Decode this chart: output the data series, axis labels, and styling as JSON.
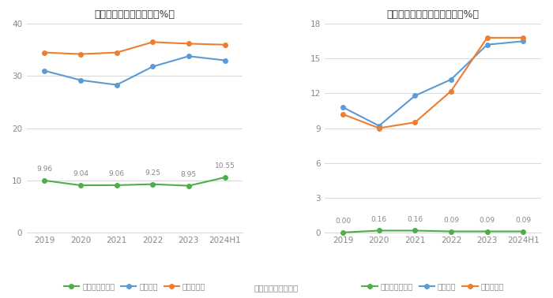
{
  "left_title": "近年来资产负债率情况（%）",
  "right_title": "近年来有息资产负债率情况（%）",
  "x_labels": [
    "2019",
    "2020",
    "2021",
    "2022",
    "2023",
    "2024H1"
  ],
  "left": {
    "company": [
      9.96,
      9.04,
      9.06,
      9.25,
      8.95,
      10.55
    ],
    "company_labels": [
      "9.96",
      "9.04",
      "9.06",
      "9.25",
      "8.95",
      "10.55"
    ],
    "industry_mean": [
      31.0,
      29.2,
      28.3,
      31.8,
      33.8,
      33.0
    ],
    "industry_median": [
      34.5,
      34.2,
      34.5,
      36.5,
      36.2,
      36.0
    ],
    "ylim": [
      0,
      40
    ],
    "yticks": [
      0,
      10,
      20,
      30,
      40
    ]
  },
  "right": {
    "company": [
      0.0,
      0.16,
      0.16,
      0.09,
      0.09,
      0.09
    ],
    "company_labels": [
      "0.00",
      "0.16",
      "0.16",
      "0.09",
      "0.09",
      "0.09"
    ],
    "industry_mean": [
      10.8,
      9.2,
      11.8,
      13.2,
      16.2,
      16.5
    ],
    "industry_median": [
      10.2,
      9.0,
      9.5,
      12.2,
      16.8,
      16.8
    ],
    "ylim": [
      0,
      18
    ],
    "yticks": [
      0,
      3,
      6,
      9,
      12,
      15,
      18
    ]
  },
  "colors": {
    "company": "#4daf4a",
    "industry_mean": "#5b9bd5",
    "industry_median": "#ed7d31"
  },
  "legend_left": [
    "公司资产负债率",
    "行业均值",
    "行业中位数"
  ],
  "legend_right": [
    "有息资产负债率",
    "行业均值",
    "行业中位数"
  ],
  "source_text": "数据来源：恒生聚源",
  "bg_color": "#ffffff",
  "grid_color": "#d8d8d8",
  "label_color": "#888888",
  "annotation_color": "#888888",
  "title_color": "#333333"
}
